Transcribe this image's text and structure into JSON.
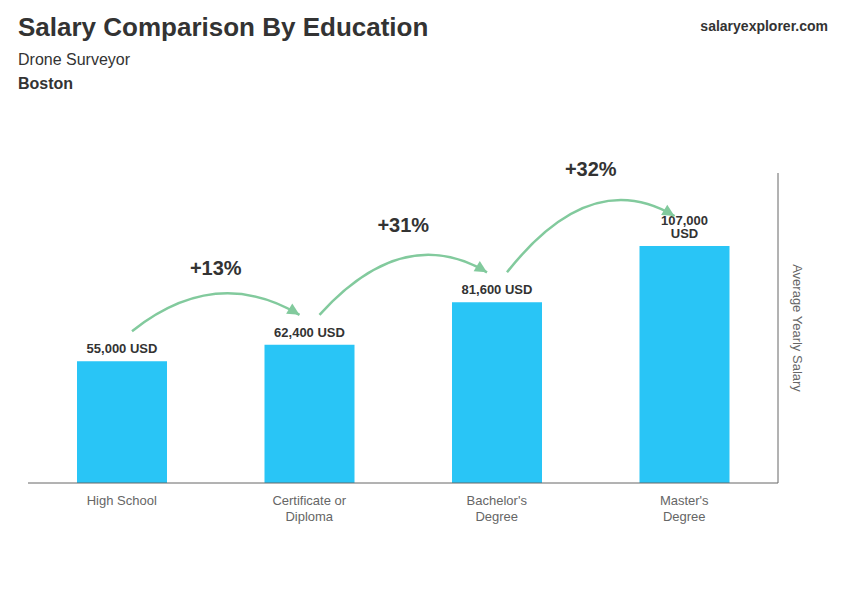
{
  "chart_data": {
    "type": "bar",
    "title": "Salary Comparison By Education",
    "subtitle": "Drone Surveyor",
    "y_label": "Average Yearly Salary",
    "annotations": [
      {
        "text": "Boston"
      },
      {
        "text": "salaryexplorer.com"
      },
      {
        "text": "+13%",
        "between": [
          "High School",
          "Certificate or\nDiploma"
        ]
      },
      {
        "text": "+31%",
        "between": [
          "Certificate or\nDiploma",
          "Bachelor's\nDegree"
        ]
      },
      {
        "text": "+32%",
        "between": [
          "Bachelor's\nDegree",
          "Master's\nDegree"
        ]
      }
    ],
    "categories": [
      "High School",
      "Certificate or\nDiploma",
      "Bachelor's\nDegree",
      "Master's\nDegree"
    ],
    "values": [
      55000,
      62400,
      81600,
      107000
    ],
    "value_labels": [
      "55,000 USD",
      "62,400 USD",
      "81,600 USD",
      "107,000 USD"
    ],
    "data_labels": true,
    "color": "#29c5f6",
    "ylim": [
      0,
      140000
    ],
    "tick_labels": "x",
    "grid": false
  }
}
